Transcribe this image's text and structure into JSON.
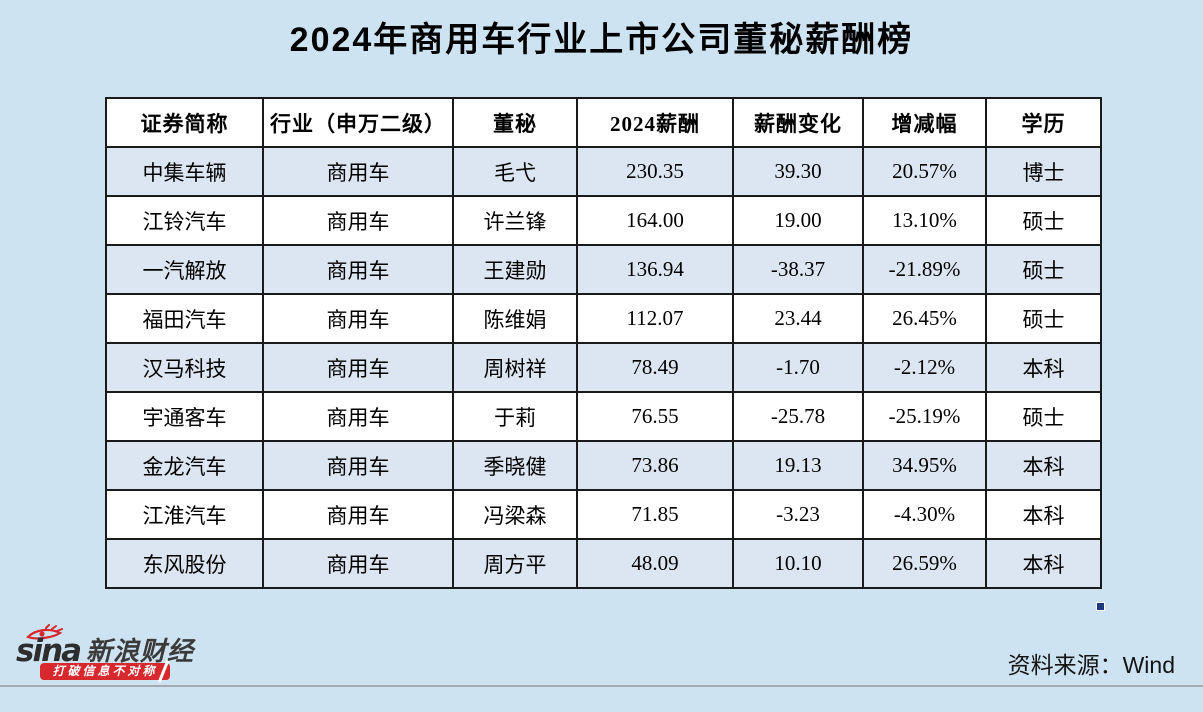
{
  "title": "2024年商用车行业上市公司董秘薪酬榜",
  "chart_data": {
    "type": "table",
    "title": "2024年商用车行业上市公司董秘薪酬榜",
    "columns": [
      "证券简称",
      "行业（申万二级）",
      "董秘",
      "2024薪酬",
      "薪酬变化",
      "增减幅",
      "学历"
    ],
    "rows": [
      [
        "中集车辆",
        "商用车",
        "毛弋",
        "230.35",
        "39.30",
        "20.57%",
        "博士"
      ],
      [
        "江铃汽车",
        "商用车",
        "许兰锋",
        "164.00",
        "19.00",
        "13.10%",
        "硕士"
      ],
      [
        "一汽解放",
        "商用车",
        "王建勋",
        "136.94",
        "-38.37",
        "-21.89%",
        "硕士"
      ],
      [
        "福田汽车",
        "商用车",
        "陈维娟",
        "112.07",
        "23.44",
        "26.45%",
        "硕士"
      ],
      [
        "汉马科技",
        "商用车",
        "周树祥",
        "78.49",
        "-1.70",
        "-2.12%",
        "本科"
      ],
      [
        "宇通客车",
        "商用车",
        "于莉",
        "76.55",
        "-25.78",
        "-25.19%",
        "硕士"
      ],
      [
        "金龙汽车",
        "商用车",
        "季晓健",
        "73.86",
        "19.13",
        "34.95%",
        "本科"
      ],
      [
        "江淮汽车",
        "商用车",
        "冯梁森",
        "71.85",
        "-3.23",
        "-4.30%",
        "本科"
      ],
      [
        "东风股份",
        "商用车",
        "周方平",
        "48.09",
        "10.10",
        "26.59%",
        "本科"
      ]
    ],
    "layout": {
      "striped": true,
      "stripe_start": "first-data-row",
      "grid": "full black borders",
      "legend": "none"
    },
    "source": "Wind"
  },
  "footer": {
    "logo_text": "sina",
    "brand_text": "新浪财经",
    "slogan": "打破信息不对称",
    "source_label": "资料来源：Wind"
  },
  "colors": {
    "page_bg": "#cee3f2",
    "row_stripe_blue": "#dce6f2",
    "header_bg": "#ffffff",
    "table_border": "#1a1a1a",
    "title_text": "#000000",
    "sina_red": "#d7282e",
    "fill_handle_navy": "#1f3a7a",
    "divider_gray": "#a6abaf"
  }
}
